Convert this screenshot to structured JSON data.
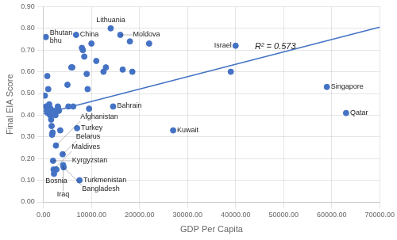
{
  "chart_data": {
    "type": "scatter",
    "x_label": "GDP Per Capita",
    "y_label": "Final EIA Score",
    "xlim": [
      0,
      70000
    ],
    "ylim": [
      0.0,
      0.9
    ],
    "xticks": [
      {
        "value": 0,
        "label": "0.00"
      },
      {
        "value": 10000,
        "label": "10000.00"
      },
      {
        "value": 20000,
        "label": "20000.00"
      },
      {
        "value": 30000,
        "label": "30000.00"
      },
      {
        "value": 40000,
        "label": "40000.00"
      },
      {
        "value": 50000,
        "label": "50000.00"
      },
      {
        "value": 60000,
        "label": "60000.00"
      },
      {
        "value": 70000,
        "label": "70000.00"
      }
    ],
    "yticks": [
      {
        "value": 0.0,
        "label": "0.00"
      },
      {
        "value": 0.1,
        "label": "0.10"
      },
      {
        "value": 0.2,
        "label": "0.20"
      },
      {
        "value": 0.3,
        "label": "0.30"
      },
      {
        "value": 0.4,
        "label": "0.40"
      },
      {
        "value": 0.5,
        "label": "0.50"
      },
      {
        "value": 0.6,
        "label": "0.60"
      },
      {
        "value": 0.7,
        "label": "0.70"
      },
      {
        "value": 0.8,
        "label": "0.80"
      },
      {
        "value": 0.9,
        "label": "0.90"
      }
    ],
    "grid": true,
    "color": "#4472C4",
    "x": [
      500,
      800,
      300,
      500,
      700,
      900,
      1000,
      1100,
      1200,
      1300,
      1400,
      1500,
      1600,
      1700,
      1800,
      1900,
      2000,
      2100,
      2200,
      2400,
      2500,
      2600,
      2700,
      3000,
      3100,
      3200,
      3500,
      4000,
      4100,
      4200,
      5000,
      5200,
      5800,
      6000,
      6200,
      6800,
      7000,
      7500,
      8000,
      8200,
      8500,
      9000,
      9200,
      9500,
      10000,
      11000,
      12500,
      13000,
      14000,
      14500,
      16000,
      16500,
      18000,
      18500,
      22000,
      27000,
      39000,
      40000,
      59000,
      63000
    ],
    "values": [
      0.76,
      0.58,
      0.49,
      0.44,
      0.42,
      0.41,
      0.52,
      0.44,
      0.45,
      0.41,
      0.4,
      0.43,
      0.38,
      0.35,
      0.31,
      0.32,
      0.19,
      0.15,
      0.13,
      0.42,
      0.4,
      0.26,
      0.15,
      0.44,
      0.43,
      0.42,
      0.33,
      0.22,
      0.17,
      0.16,
      0.54,
      0.44,
      0.62,
      0.62,
      0.44,
      0.77,
      0.34,
      0.1,
      0.71,
      0.7,
      0.67,
      0.59,
      0.52,
      0.43,
      0.73,
      0.65,
      0.6,
      0.62,
      0.8,
      0.44,
      0.77,
      0.61,
      0.74,
      0.6,
      0.73,
      0.33,
      0.6,
      0.72,
      0.53,
      0.41
    ],
    "trendline": {
      "x": [
        0,
        70000
      ],
      "values": [
        0.406,
        0.806
      ],
      "color": "#4472C4"
    },
    "annotations": [
      {
        "text": "Bhutan\nbhu",
        "x": 500,
        "y": 0.76
      },
      {
        "text": "Kyrgyzstan",
        "x": 2000,
        "y": 0.19
      },
      {
        "text": "Maldives",
        "x": 2100,
        "y": 0.15
      },
      {
        "text": "Afghanistan",
        "x": 2600,
        "y": 0.26
      },
      {
        "text": "Bosnia",
        "x": 2700,
        "y": 0.15
      },
      {
        "text": "Belarus",
        "x": 4000,
        "y": 0.22
      },
      {
        "text": "Iraq",
        "x": 4100,
        "y": 0.17
      },
      {
        "text": "Bangladesh",
        "x": 4200,
        "y": 0.16
      },
      {
        "text": "China",
        "x": 6800,
        "y": 0.77
      },
      {
        "text": "Turkey",
        "x": 7000,
        "y": 0.34
      },
      {
        "text": "Turkmenistan",
        "x": 7500,
        "y": 0.1
      },
      {
        "text": "Lithuania",
        "x": 14000,
        "y": 0.8
      },
      {
        "text": "Bahrain",
        "x": 14500,
        "y": 0.44
      },
      {
        "text": "Moldova",
        "x": 16000,
        "y": 0.77
      },
      {
        "text": "Kuwait",
        "x": 27000,
        "y": 0.33
      },
      {
        "text": "Israel",
        "x": 40000,
        "y": 0.72
      },
      {
        "text": "Singapore",
        "x": 59000,
        "y": 0.53
      },
      {
        "text": "Qatar",
        "x": 63000,
        "y": 0.41
      }
    ],
    "r2_label": {
      "text": "R² = 0.573",
      "x": 44000,
      "y": 0.695
    }
  }
}
